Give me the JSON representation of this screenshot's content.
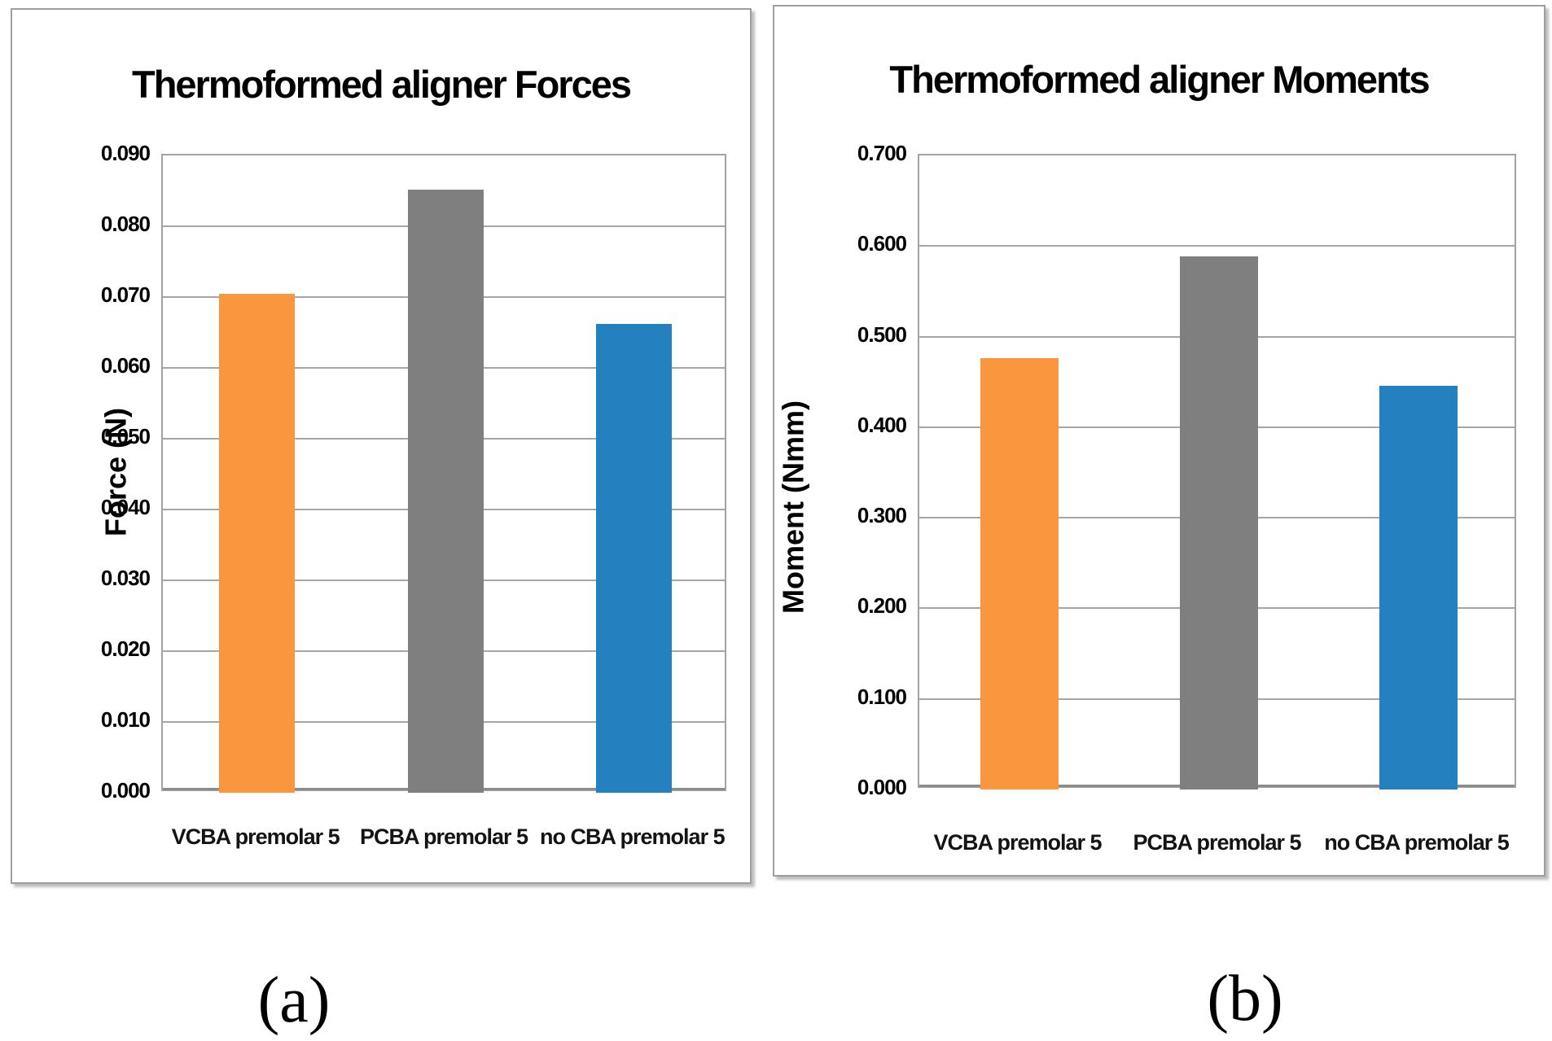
{
  "figure": {
    "captions": {
      "a": "(a)",
      "b": "(b)"
    }
  },
  "chart_data": [
    {
      "type": "bar",
      "title": "Thermoformed aligner Forces",
      "ylabel": "Force  (N)",
      "xlabel": "",
      "categories": [
        "VCBA premolar 5",
        "PCBA premolar 5",
        "no CBA premolar 5"
      ],
      "values": [
        0.0705,
        0.0852,
        0.0662
      ],
      "ylim": [
        0.0,
        0.09
      ],
      "ytick_step": 0.01,
      "ytick_decimals": 3,
      "grid": true,
      "legend": "none",
      "bar_colors": [
        "#F9963E",
        "#7F7F7F",
        "#2580C0"
      ]
    },
    {
      "type": "bar",
      "title": "Thermoformed aligner Moments",
      "ylabel": "Moment (Nmm)",
      "xlabel": "",
      "categories": [
        "VCBA premolar 5",
        "PCBA premolar 5",
        "no CBA premolar 5"
      ],
      "values": [
        0.476,
        0.589,
        0.446
      ],
      "ylim": [
        0.0,
        0.7
      ],
      "ytick_step": 0.1,
      "ytick_decimals": 3,
      "grid": true,
      "legend": "none",
      "bar_colors": [
        "#F9963E",
        "#7F7F7F",
        "#2580C0"
      ]
    }
  ]
}
